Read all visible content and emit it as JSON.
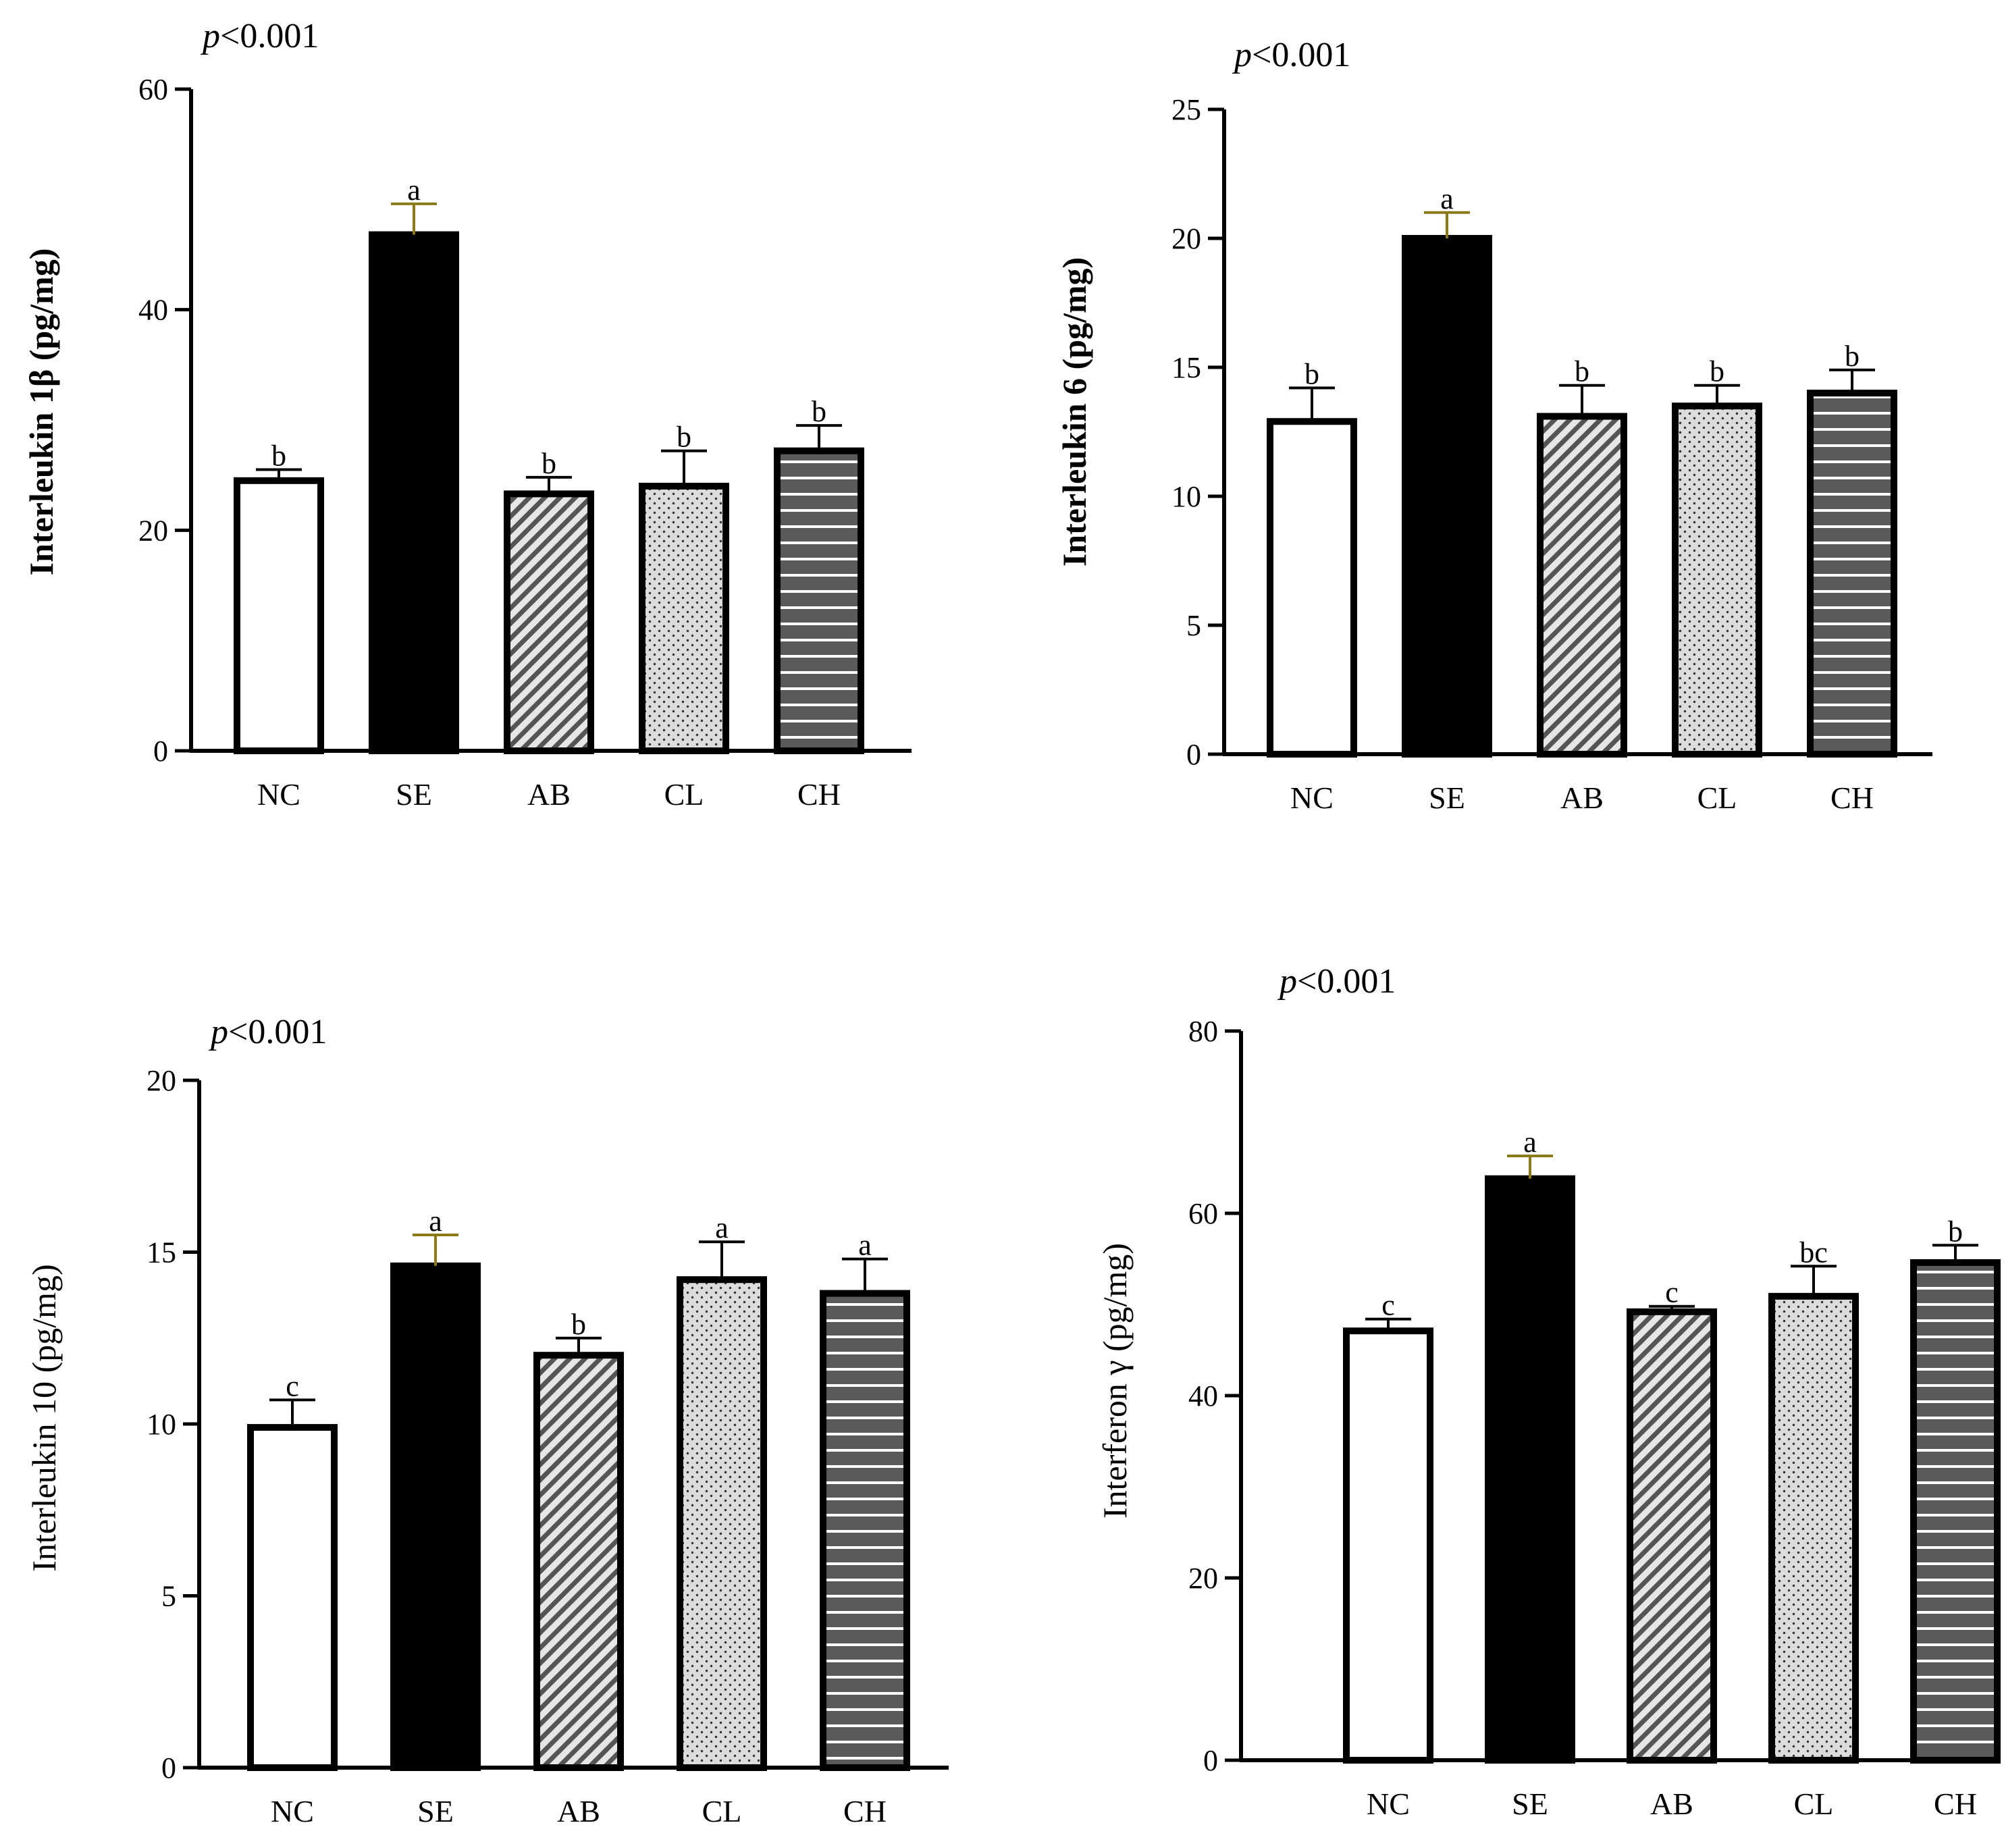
{
  "chart_data": [
    {
      "type": "bar",
      "title": "",
      "annotation_prefix": "p",
      "annotation_rest": "<0.001",
      "ylabel": "Interleukin 1β (pg/mg)",
      "ylabel_bold": true,
      "xlabel": "",
      "ylim": [
        0,
        60
      ],
      "yticks": [
        0,
        20,
        40,
        60
      ],
      "categories": [
        "NC",
        "SE",
        "AB",
        "CL",
        "CH"
      ],
      "values": [
        24.5,
        46.8,
        23.3,
        24.0,
        27.2
      ],
      "errors": [
        1.0,
        2.8,
        1.5,
        3.2,
        2.3
      ],
      "significance": [
        "b",
        "a",
        "b",
        "b",
        "b"
      ]
    },
    {
      "type": "bar",
      "title": "",
      "annotation_prefix": "p",
      "annotation_rest": "<0.001",
      "ylabel": "Interleukin 6 (pg/mg)",
      "ylabel_bold": true,
      "xlabel": "",
      "ylim": [
        0,
        25
      ],
      "yticks": [
        0,
        5,
        10,
        15,
        20,
        25
      ],
      "categories": [
        "NC",
        "SE",
        "AB",
        "CL",
        "CH"
      ],
      "values": [
        12.9,
        20.0,
        13.1,
        13.5,
        14.0
      ],
      "errors": [
        1.3,
        1.0,
        1.2,
        0.8,
        0.9
      ],
      "significance": [
        "b",
        "a",
        "b",
        "b",
        "b"
      ]
    },
    {
      "type": "bar",
      "title": "",
      "annotation_prefix": "p",
      "annotation_rest": "<0.001",
      "ylabel": "Interleukin 10 (pg/mg)",
      "ylabel_bold": false,
      "xlabel": "",
      "ylim": [
        0,
        20
      ],
      "yticks": [
        0,
        5,
        10,
        15,
        20
      ],
      "categories": [
        "NC",
        "SE",
        "AB",
        "CL",
        "CH"
      ],
      "values": [
        9.9,
        14.6,
        12.0,
        14.2,
        13.8
      ],
      "errors": [
        0.8,
        0.9,
        0.5,
        1.1,
        1.0
      ],
      "significance": [
        "c",
        "a",
        "b",
        "a",
        "a"
      ]
    },
    {
      "type": "bar",
      "title": "",
      "annotation_prefix": "p",
      "annotation_rest": "<0.001",
      "ylabel": "Interferon γ (pg/mg)",
      "ylabel_bold": false,
      "xlabel": "",
      "ylim": [
        0,
        80
      ],
      "yticks": [
        0,
        20,
        40,
        60,
        80
      ],
      "categories": [
        "NC",
        "SE",
        "AB",
        "CL",
        "CH"
      ],
      "values": [
        47.1,
        63.8,
        49.2,
        50.9,
        54.6
      ],
      "errors": [
        1.3,
        2.5,
        0.6,
        3.3,
        1.9
      ],
      "significance": [
        "c",
        "a",
        "c",
        "bc",
        "b"
      ]
    }
  ],
  "colors": {
    "axis": "#000000",
    "se_error": "#8a7a1a",
    "nc_fill": "#ffffff",
    "se_fill": "#000000",
    "ab_fill": "#e6e6e6",
    "ab_stripe": "#555555",
    "cl_fill": "#dcdcdc",
    "cl_dot": "#333333",
    "ch_fill": "#5a5a5a",
    "ch_stripe": "#ffffff"
  }
}
